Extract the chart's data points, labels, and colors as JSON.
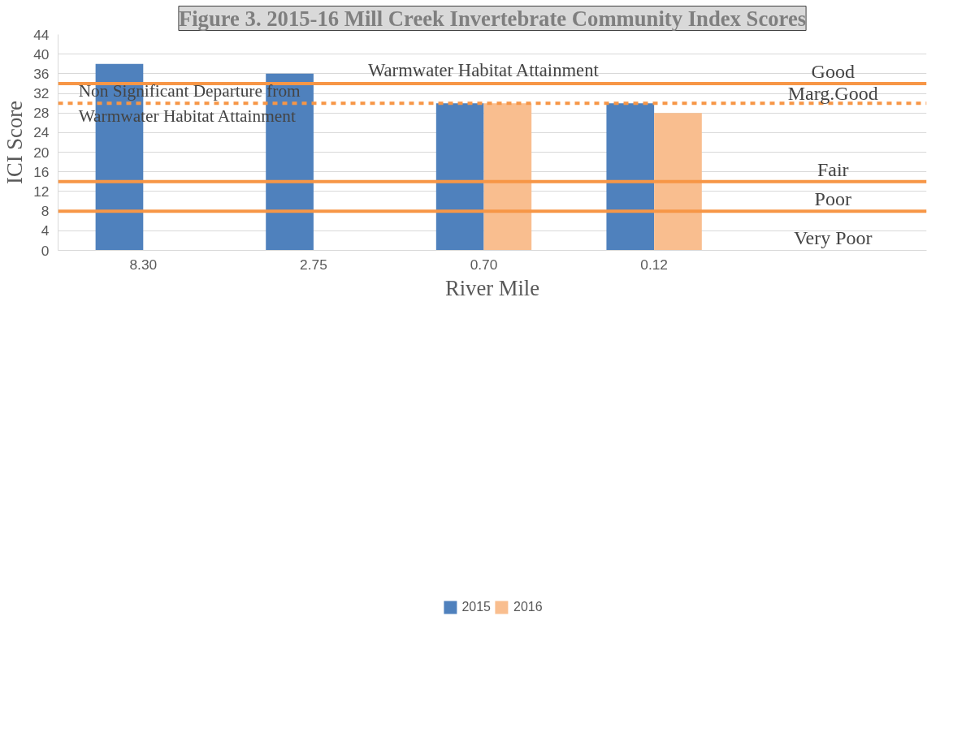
{
  "chart_data": {
    "type": "bar",
    "title": "Figure 3. 2015-16 Mill Creek Invertebrate Community Index Scores",
    "xlabel": "River Mile",
    "ylabel": "ICI Score",
    "categories": [
      "8.30",
      "2.75",
      "0.70",
      "0.12"
    ],
    "series": [
      {
        "name": "2015",
        "color": "#4f81bd",
        "values": [
          38,
          36,
          30,
          30
        ]
      },
      {
        "name": "2016",
        "color": "#f9be8f",
        "values": [
          null,
          null,
          30,
          28
        ]
      }
    ],
    "ylim": [
      0,
      44
    ],
    "yticks": [
      0,
      4,
      8,
      12,
      16,
      20,
      24,
      28,
      32,
      36,
      40,
      44
    ],
    "grid": "y",
    "legend": "bottom",
    "ref_lines": [
      {
        "axis": "y",
        "value": 34,
        "label": "Warmwater Habitat Attainment",
        "color": "#f79646",
        "line_style": "solid"
      },
      {
        "axis": "y",
        "value": 30,
        "label": "Non Significant Departure from\nWarmwater Habitat Attainment",
        "color": "#f79646",
        "line_style": "dashed"
      },
      {
        "axis": "y",
        "value": 14,
        "label": null,
        "color": "#f79646",
        "line_style": "solid"
      },
      {
        "axis": "y",
        "value": 8,
        "label": null,
        "color": "#f79646",
        "line_style": "solid"
      }
    ],
    "annotations": [
      "Good",
      "Marg.Good",
      "Fair",
      "Poor",
      "Very Poor"
    ]
  }
}
